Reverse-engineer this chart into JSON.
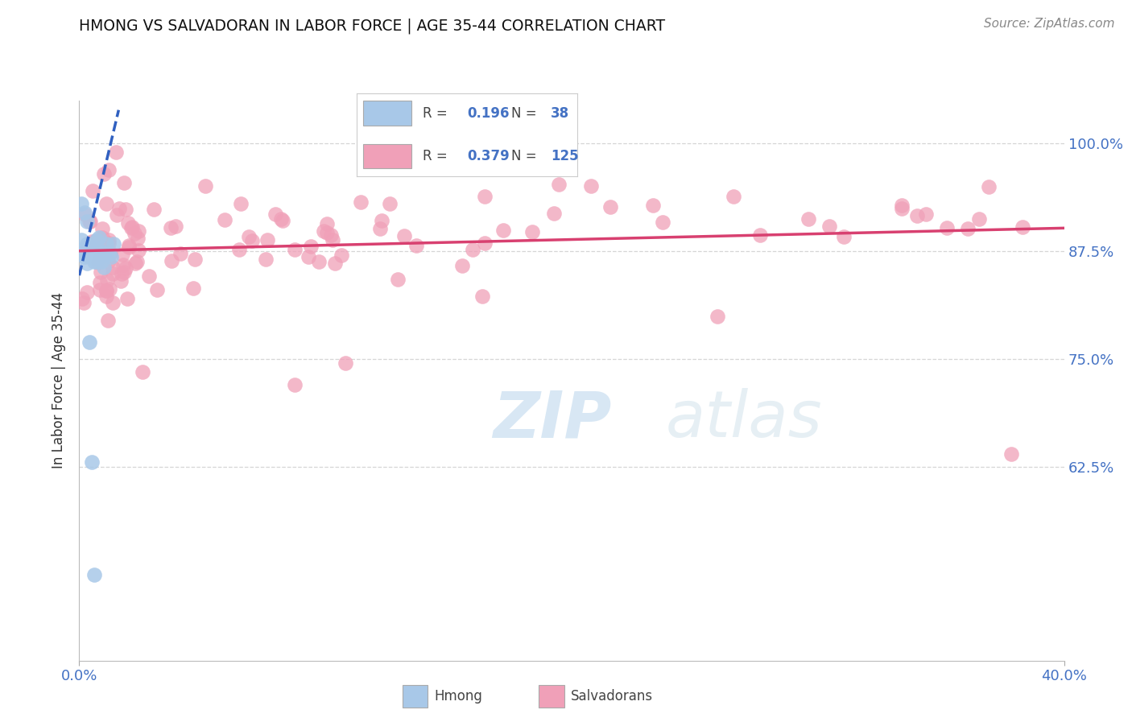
{
  "title": "HMONG VS SALVADORAN IN LABOR FORCE | AGE 35-44 CORRELATION CHART",
  "source_text": "Source: ZipAtlas.com",
  "ylabel": "In Labor Force | Age 35-44",
  "xlim": [
    0.0,
    0.4
  ],
  "ylim": [
    0.4,
    1.05
  ],
  "xtick_vals": [
    0.0,
    0.4
  ],
  "xtick_labels": [
    "0.0%",
    "40.0%"
  ],
  "ytick_values": [
    0.625,
    0.75,
    0.875,
    1.0
  ],
  "ytick_labels": [
    "62.5%",
    "75.0%",
    "87.5%",
    "100.0%"
  ],
  "hmong_R": "0.196",
  "hmong_N": "38",
  "salv_R": "0.379",
  "salv_N": "125",
  "hmong_color": "#a8c8e8",
  "salv_color": "#f0a0b8",
  "hmong_line_color": "#3060c0",
  "salv_line_color": "#d84070",
  "background_color": "#ffffff",
  "title_color": "#111111",
  "axis_label_color": "#333333",
  "tick_label_color": "#4472c4",
  "grid_color": "#cccccc",
  "watermark_color": "#c8dff0",
  "source_color": "#888888"
}
